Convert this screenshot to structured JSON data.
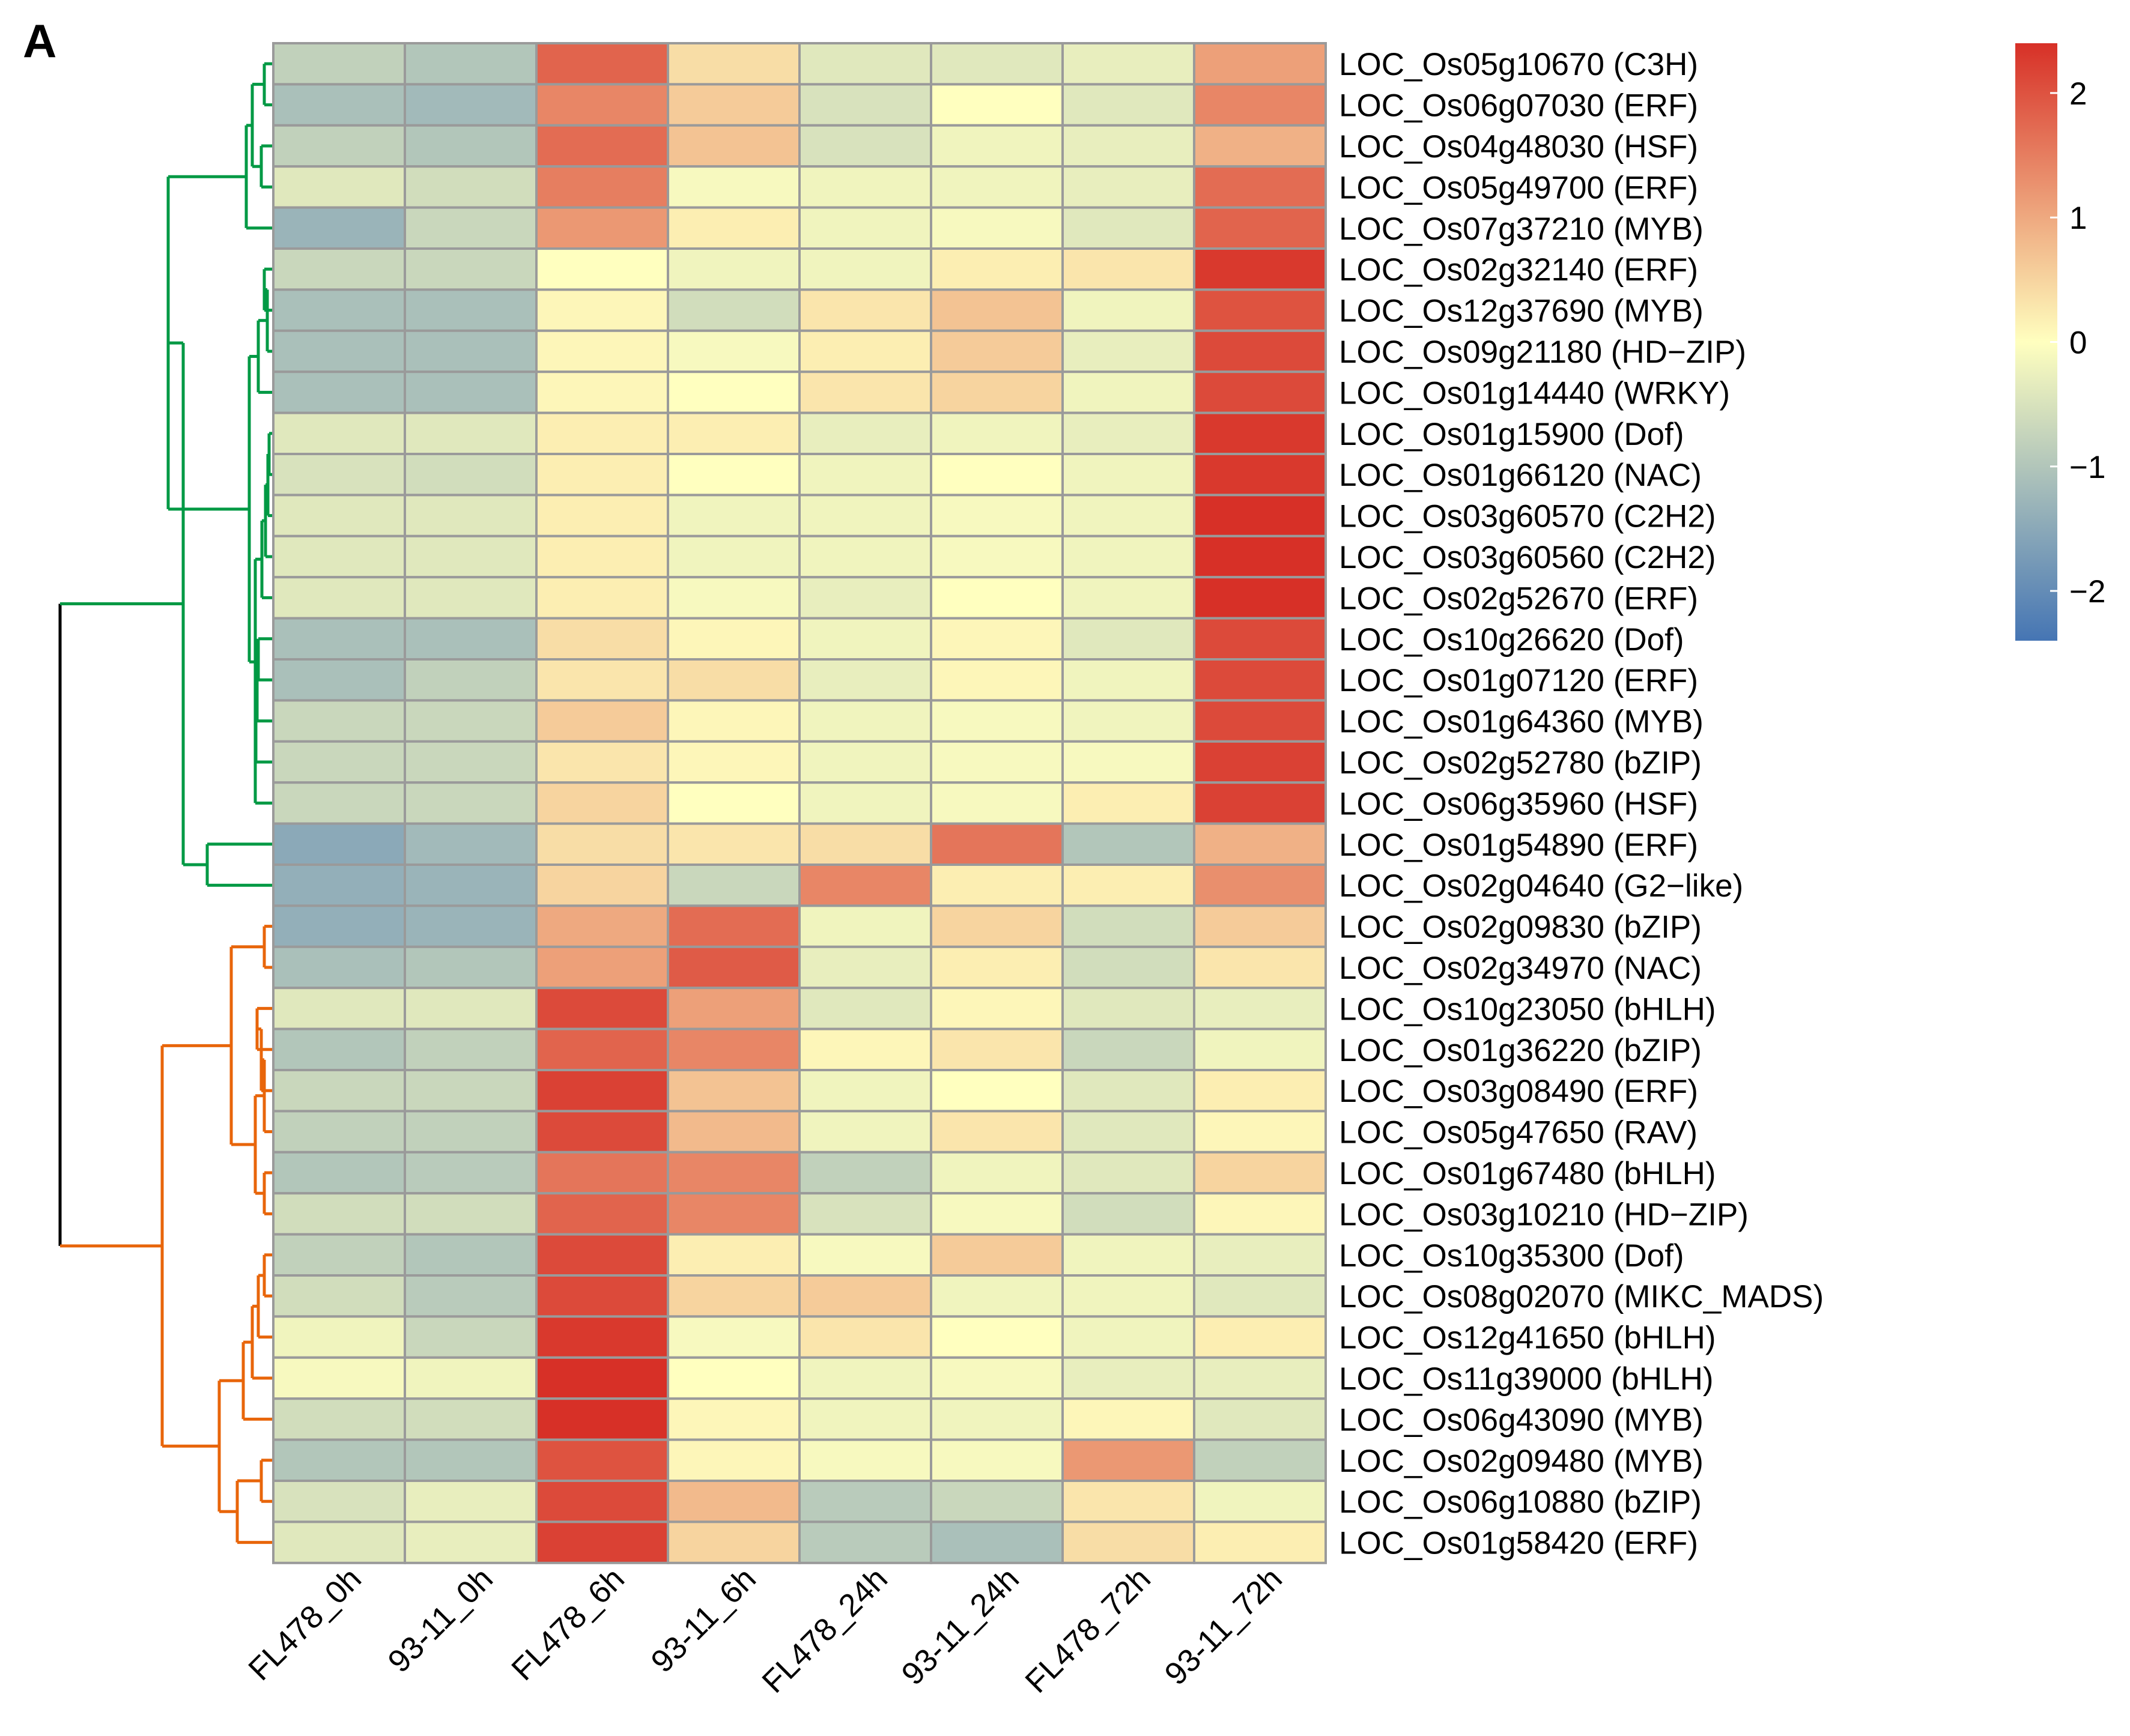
{
  "panel_label": "A",
  "chart_data": {
    "type": "heatmap",
    "title": "",
    "columns": [
      "FL478_0h",
      "93-11_0h",
      "FL478_6h",
      "93-11_6h",
      "FL478_24h",
      "93-11_24h",
      "FL478_72h",
      "93-11_72h"
    ],
    "rows": [
      "LOC_Os05g10670 (C3H)",
      "LOC_Os06g07030 (ERF)",
      "LOC_Os04g48030 (HSF)",
      "LOC_Os05g49700 (ERF)",
      "LOC_Os07g37210 (MYB)",
      "LOC_Os02g32140 (ERF)",
      "LOC_Os12g37690 (MYB)",
      "LOC_Os09g21180 (HD−ZIP)",
      "LOC_Os01g14440 (WRKY)",
      "LOC_Os01g15900 (Dof)",
      "LOC_Os01g66120 (NAC)",
      "LOC_Os03g60570 (C2H2)",
      "LOC_Os03g60560 (C2H2)",
      "LOC_Os02g52670 (ERF)",
      "LOC_Os10g26620 (Dof)",
      "LOC_Os01g07120 (ERF)",
      "LOC_Os01g64360 (MYB)",
      "LOC_Os02g52780 (bZIP)",
      "LOC_Os06g35960 (HSF)",
      "LOC_Os01g54890 (ERF)",
      "LOC_Os02g04640 (G2−like)",
      "LOC_Os02g09830 (bZIP)",
      "LOC_Os02g34970 (NAC)",
      "LOC_Os10g23050 (bHLH)",
      "LOC_Os01g36220 (bZIP)",
      "LOC_Os03g08490 (ERF)",
      "LOC_Os05g47650 (RAV)",
      "LOC_Os01g67480 (bHLH)",
      "LOC_Os03g10210 (HD−ZIP)",
      "LOC_Os10g35300 (Dof)",
      "LOC_Os08g02070 (MIKC_MADS)",
      "LOC_Os12g41650 (bHLH)",
      "LOC_Os11g39000 (bHLH)",
      "LOC_Os06g43090 (MYB)",
      "LOC_Os02g09480 (MYB)",
      "LOC_Os06g10880 (bZIP)",
      "LOC_Os01g58420 (ERF)"
    ],
    "values": [
      [
        -0.8,
        -1.0,
        1.8,
        0.4,
        -0.4,
        -0.4,
        -0.3,
        1.1
      ],
      [
        -1.1,
        -1.2,
        1.4,
        0.6,
        -0.5,
        0.0,
        -0.4,
        1.4
      ],
      [
        -0.8,
        -1.0,
        1.7,
        0.7,
        -0.5,
        -0.2,
        -0.3,
        0.9
      ],
      [
        -0.4,
        -0.6,
        1.5,
        -0.1,
        -0.2,
        -0.2,
        -0.3,
        1.7
      ],
      [
        -1.3,
        -0.7,
        1.2,
        0.2,
        -0.2,
        -0.1,
        -0.4,
        1.8
      ],
      [
        -0.7,
        -0.7,
        0.0,
        -0.2,
        -0.2,
        0.2,
        0.3,
        2.3
      ],
      [
        -1.1,
        -1.1,
        0.1,
        -0.6,
        0.3,
        0.7,
        -0.2,
        2.0
      ],
      [
        -1.1,
        -1.1,
        0.1,
        -0.1,
        0.2,
        0.6,
        -0.3,
        2.1
      ],
      [
        -1.1,
        -1.1,
        0.1,
        0.0,
        0.3,
        0.5,
        -0.2,
        2.1
      ],
      [
        -0.4,
        -0.4,
        0.2,
        0.2,
        -0.3,
        -0.2,
        -0.3,
        2.3
      ],
      [
        -0.5,
        -0.6,
        0.2,
        0.0,
        -0.2,
        0.0,
        -0.2,
        2.3
      ],
      [
        -0.4,
        -0.4,
        0.2,
        -0.2,
        -0.2,
        -0.1,
        -0.2,
        2.4
      ],
      [
        -0.4,
        -0.4,
        0.2,
        -0.2,
        -0.2,
        -0.1,
        -0.2,
        2.4
      ],
      [
        -0.4,
        -0.4,
        0.2,
        -0.1,
        -0.3,
        0.0,
        -0.2,
        2.4
      ],
      [
        -1.1,
        -1.1,
        0.4,
        0.1,
        -0.2,
        0.1,
        -0.4,
        2.1
      ],
      [
        -1.1,
        -0.8,
        0.3,
        0.4,
        -0.3,
        0.1,
        -0.2,
        2.1
      ],
      [
        -0.7,
        -0.7,
        0.6,
        0.1,
        -0.2,
        -0.1,
        -0.2,
        2.1
      ],
      [
        -0.7,
        -0.7,
        0.3,
        0.1,
        -0.2,
        -0.1,
        -0.1,
        2.2
      ],
      [
        -0.7,
        -0.7,
        0.5,
        0.0,
        -0.2,
        -0.1,
        0.2,
        2.2
      ],
      [
        -1.5,
        -1.2,
        0.4,
        0.3,
        0.4,
        1.6,
        -1.0,
        0.9
      ],
      [
        -1.4,
        -1.3,
        0.5,
        -0.7,
        1.4,
        0.2,
        0.2,
        1.3
      ],
      [
        -1.4,
        -1.3,
        1.0,
        1.7,
        -0.2,
        0.5,
        -0.6,
        0.6
      ],
      [
        -1.1,
        -1.0,
        1.1,
        1.9,
        -0.3,
        0.2,
        -0.6,
        0.3
      ],
      [
        -0.4,
        -0.4,
        2.1,
        1.1,
        -0.4,
        0.1,
        -0.4,
        -0.3
      ],
      [
        -1.0,
        -0.8,
        1.8,
        1.4,
        0.1,
        0.3,
        -0.7,
        -0.2
      ],
      [
        -0.7,
        -0.7,
        2.2,
        0.7,
        -0.2,
        0.0,
        -0.4,
        0.2
      ],
      [
        -0.8,
        -0.8,
        2.1,
        0.8,
        -0.2,
        0.3,
        -0.4,
        0.1
      ],
      [
        -1.0,
        -0.9,
        1.6,
        1.4,
        -0.8,
        -0.2,
        -0.4,
        0.5
      ],
      [
        -0.6,
        -0.6,
        1.8,
        1.4,
        -0.5,
        -0.1,
        -0.6,
        0.1
      ],
      [
        -0.8,
        -1.0,
        2.1,
        0.2,
        -0.1,
        0.6,
        -0.2,
        -0.3
      ],
      [
        -0.6,
        -0.9,
        2.1,
        0.5,
        0.6,
        -0.2,
        -0.2,
        -0.4
      ],
      [
        -0.2,
        -0.7,
        2.3,
        -0.1,
        0.3,
        0.0,
        -0.2,
        0.2
      ],
      [
        -0.1,
        -0.2,
        2.4,
        0.0,
        -0.2,
        -0.1,
        -0.3,
        -0.3
      ],
      [
        -0.6,
        -0.6,
        2.4,
        0.1,
        -0.2,
        -0.2,
        0.1,
        -0.4
      ],
      [
        -1.0,
        -1.0,
        2.0,
        0.1,
        -0.1,
        -0.1,
        1.2,
        -0.8
      ],
      [
        -0.5,
        -0.3,
        2.1,
        0.8,
        -0.9,
        -0.7,
        0.3,
        -0.2
      ],
      [
        -0.4,
        -0.3,
        2.2,
        0.5,
        -0.9,
        -1.1,
        0.4,
        0.2
      ]
    ],
    "color_scale": {
      "min": -2.4,
      "max": 2.4,
      "low_color": "#4575b4",
      "mid_color": "#ffffbf",
      "high_color": "#d73027",
      "ticks": [
        2,
        1,
        0,
        -1,
        -2
      ],
      "tick_labels": [
        "2",
        "1",
        "0",
        "−1",
        "−2"
      ]
    },
    "clusters": [
      {
        "name": "cluster-1",
        "color": "#009944",
        "rows": [
          0,
          20
        ]
      },
      {
        "name": "cluster-2",
        "color": "#e8650a",
        "rows": [
          21,
          36
        ]
      }
    ],
    "root_color": "#000000",
    "grid_color": "#9a9a9a"
  }
}
